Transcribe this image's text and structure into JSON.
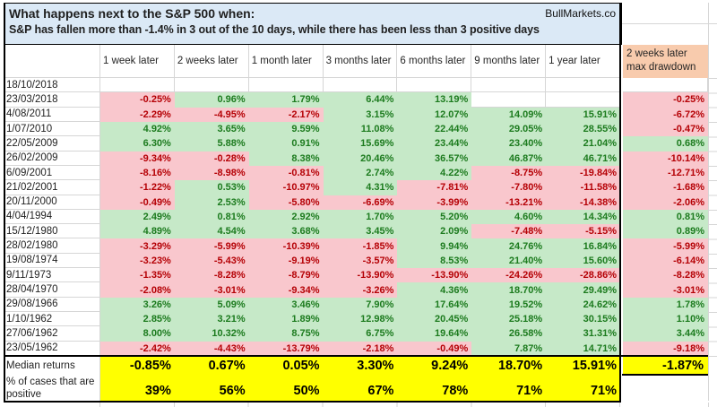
{
  "title": {
    "line1": "What happens next to the S&P 500 when:",
    "line2": "S&P has fallen more than -1.4% in 3 out of the 10 days, while there has been less than 3 positive days",
    "brand": "BullMarkets.co"
  },
  "table": {
    "columns": [
      "1 week later",
      "2 weeks later",
      "1 month later",
      "3 months later",
      "6 months later",
      "9 months later",
      "1 year later"
    ],
    "drawdown_header": {
      "line1": "2 weeks later",
      "line2": "max drawdown"
    },
    "rows": [
      {
        "date": "18/10/2018",
        "values": [
          "",
          "",
          "",
          "",
          "",
          "",
          ""
        ],
        "drawdown": ""
      },
      {
        "date": "23/03/2018",
        "values": [
          "-0.25%",
          "0.96%",
          "1.79%",
          "6.44%",
          "13.19%",
          "",
          ""
        ],
        "drawdown": "-0.25%"
      },
      {
        "date": "4/08/2011",
        "values": [
          "-2.29%",
          "-4.95%",
          "-2.17%",
          "3.15%",
          "12.07%",
          "14.09%",
          "15.91%"
        ],
        "drawdown": "-6.72%"
      },
      {
        "date": "1/07/2010",
        "values": [
          "4.92%",
          "3.65%",
          "9.59%",
          "11.08%",
          "22.44%",
          "29.05%",
          "28.55%"
        ],
        "drawdown": "-0.47%"
      },
      {
        "date": "22/05/2009",
        "values": [
          "6.30%",
          "5.88%",
          "0.91%",
          "15.69%",
          "23.44%",
          "23.40%",
          "21.04%"
        ],
        "drawdown": "0.68%"
      },
      {
        "date": "26/02/2009",
        "values": [
          "-9.34%",
          "-0.28%",
          "8.38%",
          "20.46%",
          "36.57%",
          "46.87%",
          "46.71%"
        ],
        "drawdown": "-10.14%"
      },
      {
        "date": "6/09/2001",
        "values": [
          "-8.16%",
          "-8.98%",
          "-0.81%",
          "2.74%",
          "4.22%",
          "-8.75%",
          "-19.84%"
        ],
        "drawdown": "-12.71%"
      },
      {
        "date": "21/02/2001",
        "values": [
          "-1.22%",
          "0.53%",
          "-10.97%",
          "4.31%",
          "-7.81%",
          "-7.80%",
          "-11.58%"
        ],
        "drawdown": "-1.68%"
      },
      {
        "date": "20/11/2000",
        "values": [
          "-0.49%",
          "2.53%",
          "-5.80%",
          "-6.69%",
          "-3.99%",
          "-13.21%",
          "-14.38%"
        ],
        "drawdown": "-2.06%"
      },
      {
        "date": "4/04/1994",
        "values": [
          "2.49%",
          "0.81%",
          "2.92%",
          "1.70%",
          "5.20%",
          "4.60%",
          "14.34%"
        ],
        "drawdown": "0.81%"
      },
      {
        "date": "15/12/1980",
        "values": [
          "4.89%",
          "4.54%",
          "3.68%",
          "3.45%",
          "2.09%",
          "-7.48%",
          "-5.15%"
        ],
        "drawdown": "0.89%"
      },
      {
        "date": "28/02/1980",
        "values": [
          "-3.29%",
          "-5.99%",
          "-10.39%",
          "-1.85%",
          "9.94%",
          "24.76%",
          "16.84%"
        ],
        "drawdown": "-5.99%"
      },
      {
        "date": "19/08/1974",
        "values": [
          "-3.23%",
          "-5.43%",
          "-9.19%",
          "-3.57%",
          "8.53%",
          "21.40%",
          "15.60%"
        ],
        "drawdown": "-6.14%"
      },
      {
        "date": "9/11/1973",
        "values": [
          "-1.35%",
          "-8.28%",
          "-8.79%",
          "-13.90%",
          "-13.90%",
          "-24.26%",
          "-28.86%"
        ],
        "drawdown": "-8.28%"
      },
      {
        "date": "28/04/1970",
        "values": [
          "-2.08%",
          "-3.01%",
          "-9.34%",
          "-3.26%",
          "4.36%",
          "18.70%",
          "29.49%"
        ],
        "drawdown": "-3.01%"
      },
      {
        "date": "29/08/1966",
        "values": [
          "3.26%",
          "5.09%",
          "3.46%",
          "7.90%",
          "17.64%",
          "19.52%",
          "24.62%"
        ],
        "drawdown": "1.78%"
      },
      {
        "date": "1/10/1962",
        "values": [
          "2.85%",
          "3.21%",
          "1.89%",
          "12.98%",
          "20.45%",
          "25.18%",
          "30.15%"
        ],
        "drawdown": "1.10%"
      },
      {
        "date": "27/06/1962",
        "values": [
          "8.00%",
          "10.32%",
          "8.75%",
          "6.75%",
          "19.64%",
          "26.58%",
          "31.31%"
        ],
        "drawdown": "3.44%"
      },
      {
        "date": "23/05/1962",
        "values": [
          "-2.42%",
          "-4.43%",
          "-13.79%",
          "-2.18%",
          "-0.49%",
          "7.87%",
          "14.71%"
        ],
        "drawdown": "-9.18%"
      }
    ],
    "footer": {
      "median_label": "Median returns",
      "median_values": [
        "-0.85%",
        "0.67%",
        "0.05%",
        "3.30%",
        "9.24%",
        "18.70%",
        "15.91%"
      ],
      "median_drawdown": "-1.87%",
      "positive_label_line1": "% of cases that are",
      "positive_label_line2": "positive",
      "positive_values": [
        "39%",
        "56%",
        "50%",
        "67%",
        "78%",
        "71%",
        "71%"
      ]
    }
  },
  "colors": {
    "negative_fill": "#f9c7cd",
    "negative_text": "#b50005",
    "positive_fill": "#c6e9c8",
    "positive_text": "#1c7b1e",
    "title_fill": "#dbe9f6",
    "drawdown_header_fill": "#f8cbad",
    "summary_fill": "#ffff00",
    "gridline": "#d6d6d6",
    "border": "#000000"
  }
}
